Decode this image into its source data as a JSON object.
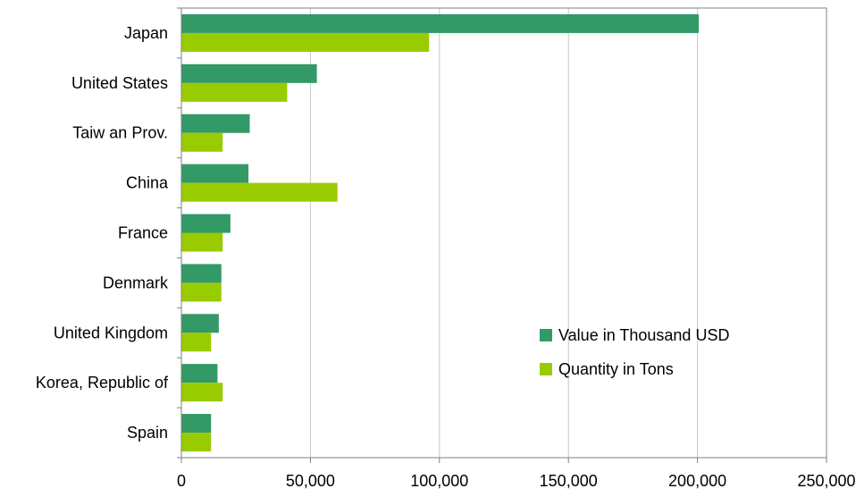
{
  "chart_data": {
    "type": "bar",
    "orientation": "horizontal",
    "categories": [
      "Japan",
      "United States",
      "Taiw an Prov.",
      "China",
      "France",
      "Denmark",
      "United Kingdom",
      "Korea, Republic of",
      "Spain"
    ],
    "series": [
      {
        "name": "Value in Thousand USD",
        "color": "#339966",
        "values": [
          200500,
          52500,
          26500,
          26000,
          19000,
          15500,
          14500,
          14000,
          11500
        ]
      },
      {
        "name": "Quantity in Tons",
        "color": "#99CC00",
        "values": [
          96000,
          41000,
          16000,
          60500,
          16000,
          15500,
          11500,
          16000,
          11500
        ]
      }
    ],
    "xlim": [
      0,
      250000
    ],
    "xticks": [
      0,
      50000,
      100000,
      150000,
      200000,
      250000
    ],
    "xtick_labels": [
      "0",
      "50,000",
      "100,000",
      "150,000",
      "200,000",
      "250,000"
    ],
    "grid": "vertical",
    "legend_position": "lower-right inside plot",
    "title": "",
    "xlabel": "",
    "ylabel": ""
  }
}
